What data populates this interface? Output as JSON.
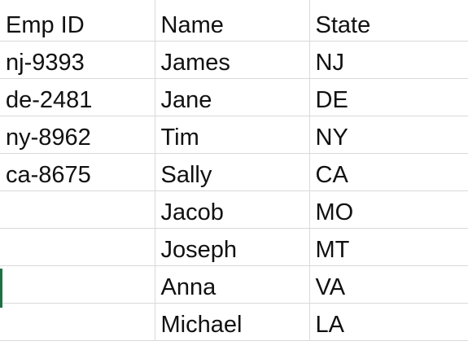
{
  "sheet": {
    "headers": [
      "Emp ID",
      "Name",
      "State"
    ],
    "rows": [
      [
        "nj-9393",
        "James",
        "NJ"
      ],
      [
        "de-2481",
        "Jane",
        "DE"
      ],
      [
        "ny-8962",
        "Tim",
        "NY"
      ],
      [
        "ca-8675",
        "Sally",
        "CA"
      ],
      [
        "",
        "Jacob",
        "MO"
      ],
      [
        "",
        "Joseph",
        "MT"
      ],
      [
        "",
        "Anna",
        "VA"
      ],
      [
        "",
        "Michael",
        "LA"
      ]
    ]
  },
  "colors": {
    "gridline": "#d9d9d9",
    "text": "#111111",
    "selection_accent": "#1e7145"
  }
}
